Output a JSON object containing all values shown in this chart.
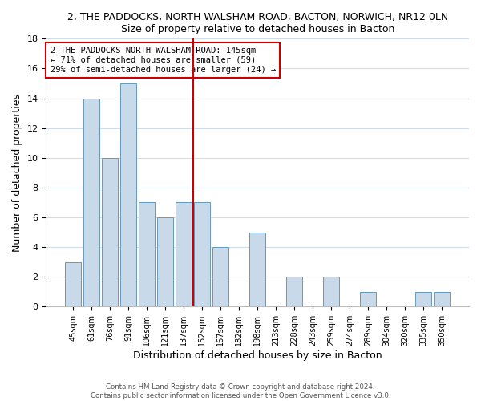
{
  "title_line1": "2, THE PADDOCKS, NORTH WALSHAM ROAD, BACTON, NORWICH, NR12 0LN",
  "title_line2": "Size of property relative to detached houses in Bacton",
  "xlabel": "Distribution of detached houses by size in Bacton",
  "ylabel": "Number of detached properties",
  "bar_labels": [
    "45sqm",
    "61sqm",
    "76sqm",
    "91sqm",
    "106sqm",
    "121sqm",
    "137sqm",
    "152sqm",
    "167sqm",
    "182sqm",
    "198sqm",
    "213sqm",
    "228sqm",
    "243sqm",
    "259sqm",
    "274sqm",
    "289sqm",
    "304sqm",
    "320sqm",
    "335sqm",
    "350sqm"
  ],
  "bar_values": [
    3,
    14,
    10,
    15,
    7,
    6,
    7,
    7,
    4,
    0,
    5,
    0,
    2,
    0,
    2,
    0,
    1,
    0,
    0,
    1,
    1
  ],
  "bar_color": "#c8daea",
  "bar_edge_color": "#6699bb",
  "highlight_color": "#cc0000",
  "annotation_line1": "2 THE PADDOCKS NORTH WALSHAM ROAD: 145sqm",
  "annotation_line2": "← 71% of detached houses are smaller (59)",
  "annotation_line3": "29% of semi-detached houses are larger (24) →",
  "ylim": [
    0,
    18
  ],
  "yticks": [
    0,
    2,
    4,
    6,
    8,
    10,
    12,
    14,
    16,
    18
  ],
  "footer_line1": "Contains HM Land Registry data © Crown copyright and database right 2024.",
  "footer_line2": "Contains public sector information licensed under the Open Government Licence v3.0.",
  "plot_bg_color": "#ffffff",
  "fig_bg_color": "#ffffff",
  "grid_color": "#d0dce8"
}
